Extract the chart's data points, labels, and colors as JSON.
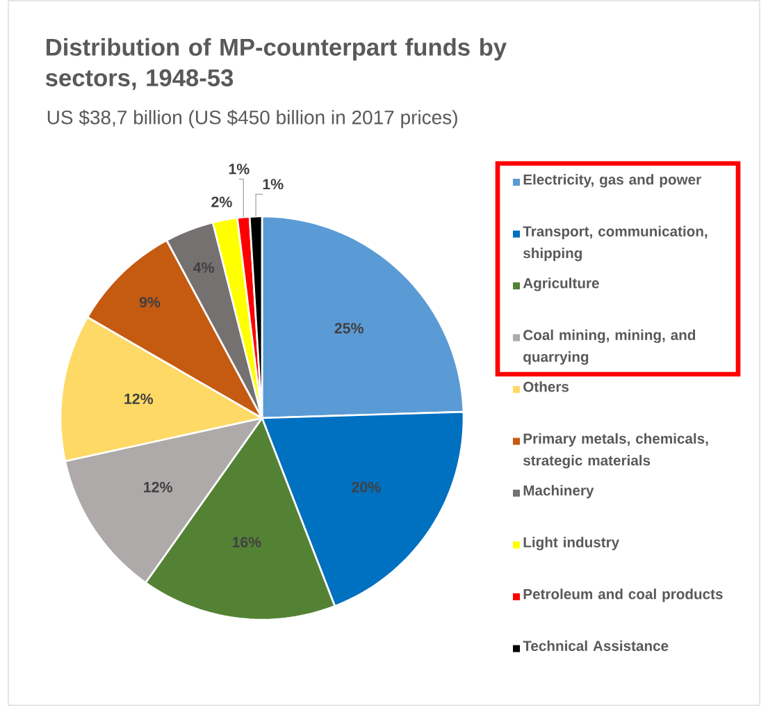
{
  "chart_data": {
    "type": "pie",
    "title": "Distribution of MP-counterpart funds by sectors, 1948-53",
    "subtitle": "US $38,7 billion (US $450 billion in 2017 prices)",
    "categories": [
      "Electricity, gas and power",
      "Transport, communication, shipping",
      "Agriculture",
      "Coal mining, mining, and quarrying",
      "Others",
      "Primary metals, chemicals, strategic materials",
      "Machinery",
      "Light industry",
      "Petroleum and coal products",
      "Technical Assistance"
    ],
    "values": [
      25,
      20,
      16,
      12,
      12,
      9,
      4,
      2,
      1,
      1
    ],
    "value_labels": [
      "25%",
      "20%",
      "16%",
      "12%",
      "12%",
      "9%",
      "4%",
      "2%",
      "1%",
      "1%"
    ],
    "colors": [
      "#5b9bd5",
      "#0070c0",
      "#548235",
      "#aeaaaa",
      "#ffd966",
      "#c55a11",
      "#767171",
      "#ffff00",
      "#ff0000",
      "#000000"
    ],
    "legend": "right"
  }
}
